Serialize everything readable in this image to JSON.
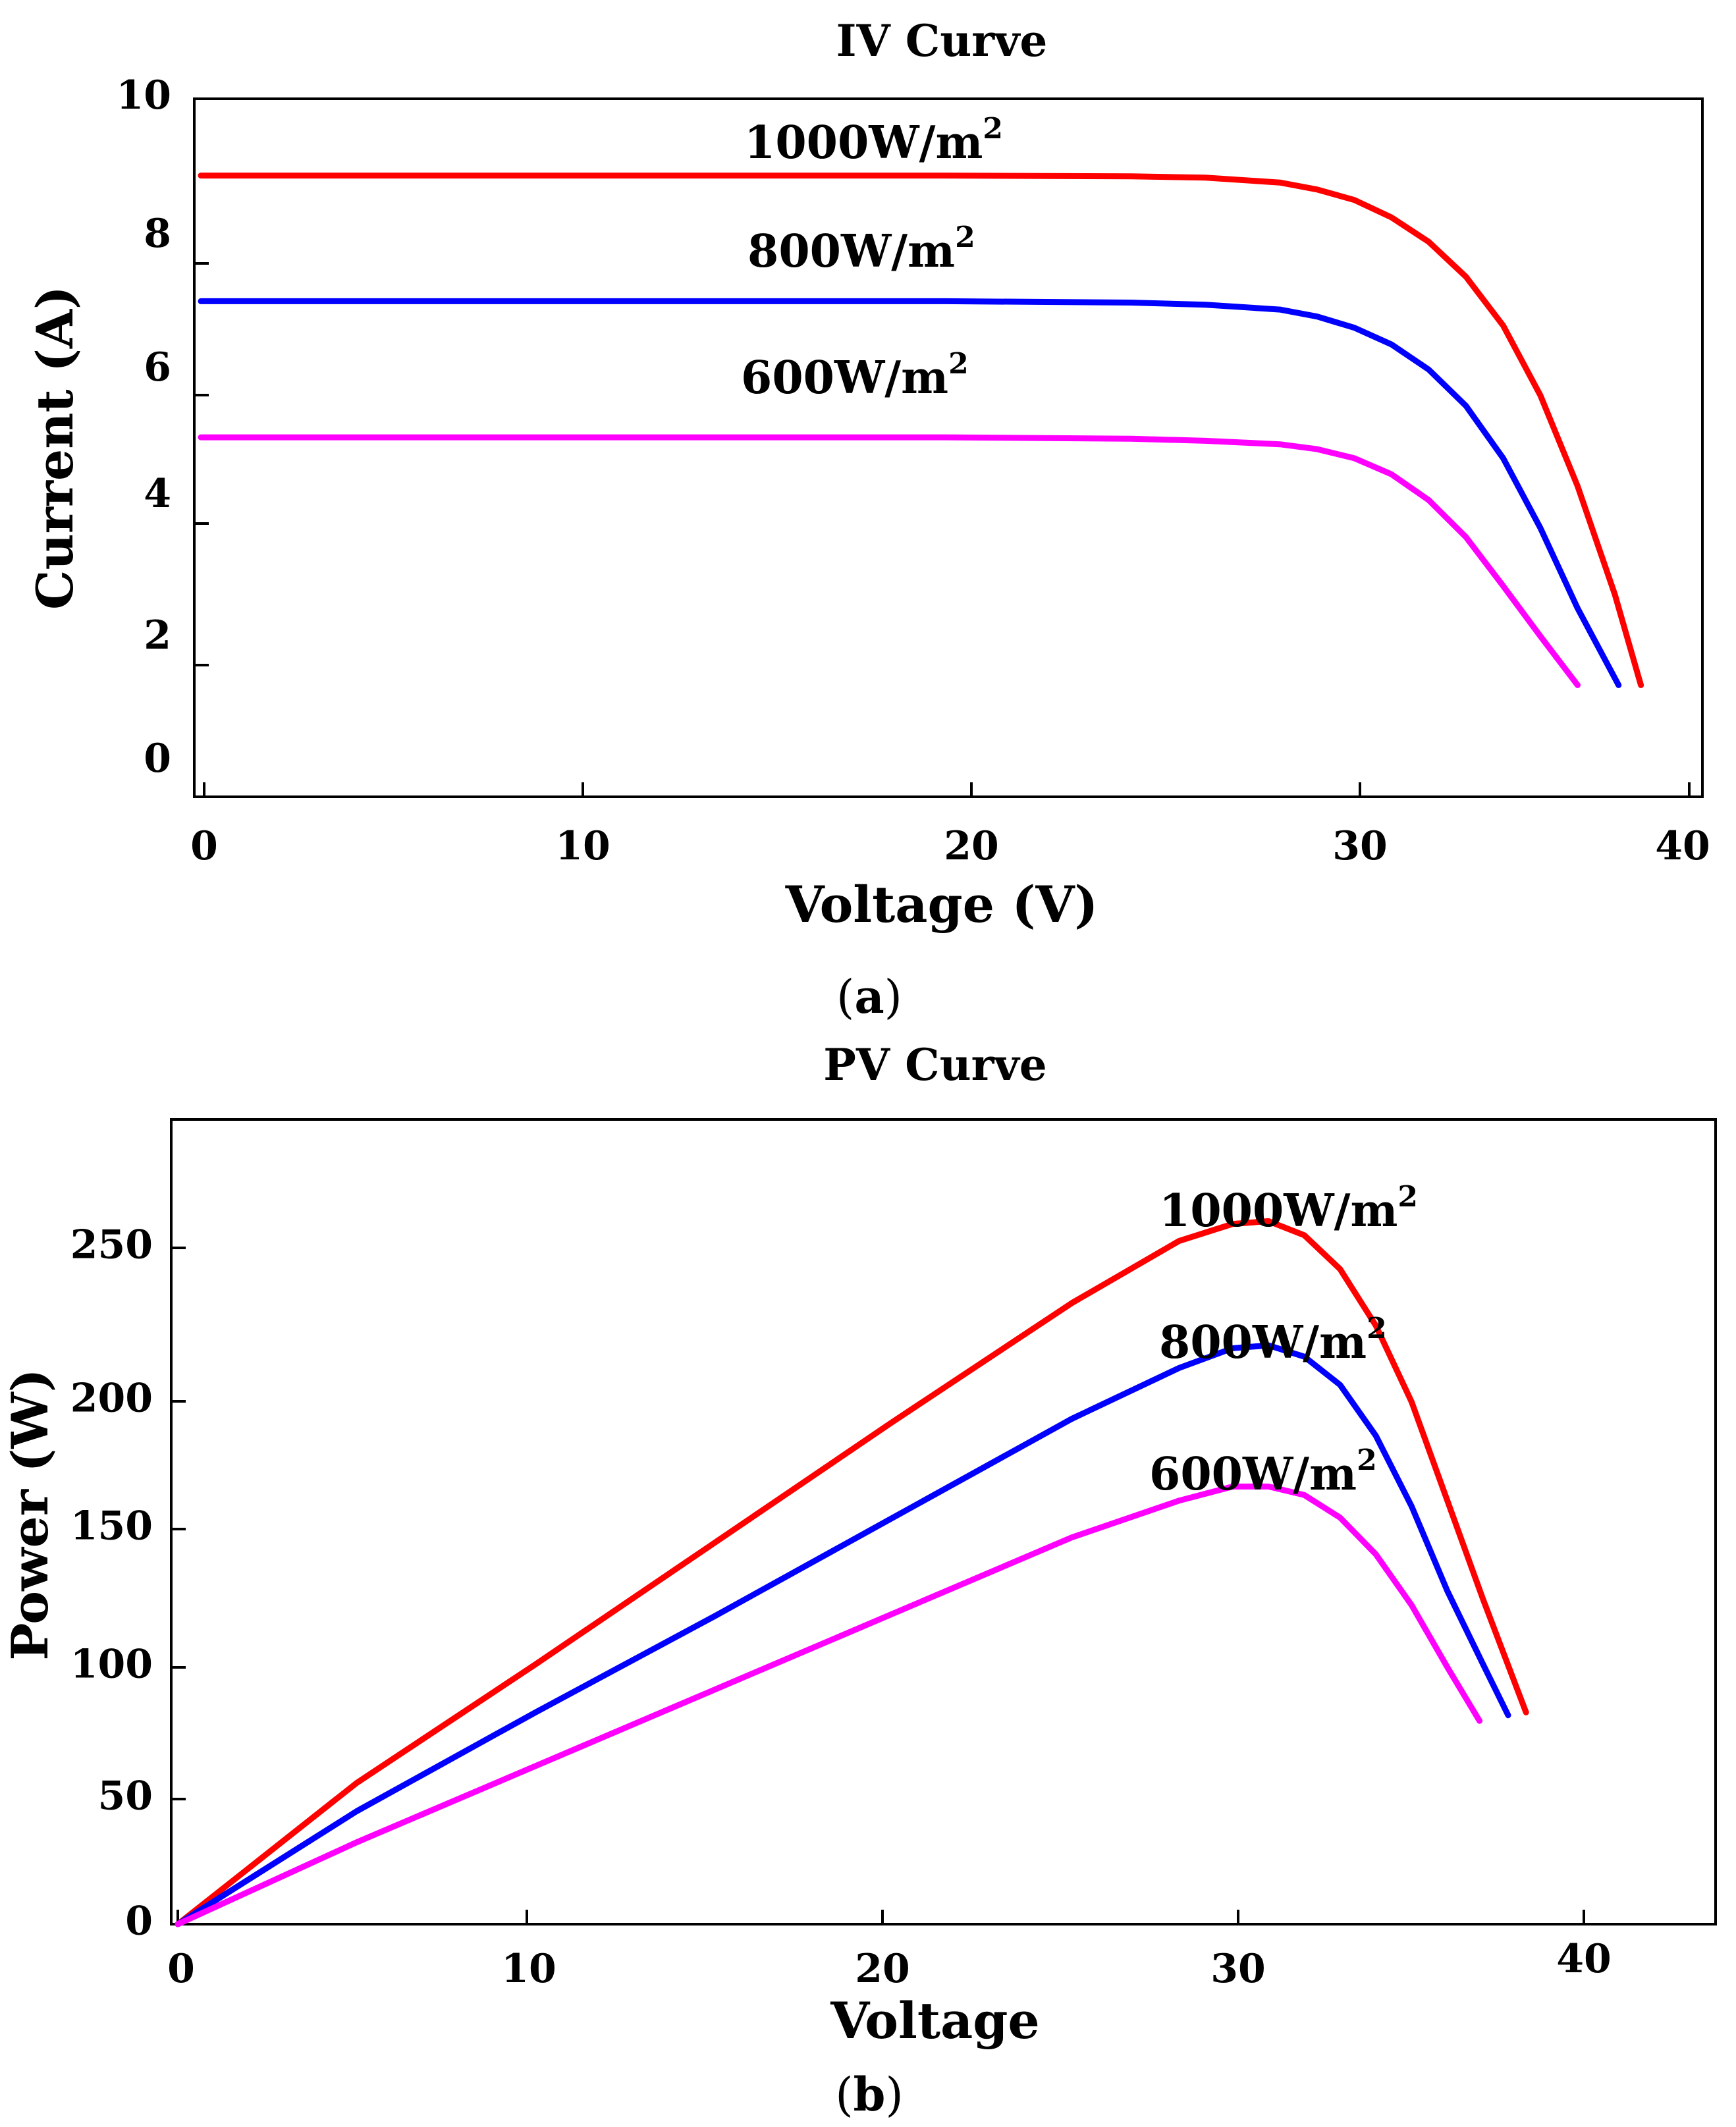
{
  "chart_data": [
    {
      "type": "line",
      "caption_letter": "a",
      "title": "IV Curve",
      "xlabel": "Voltage (V)",
      "ylabel": "Current (A)",
      "xlim": [
        0,
        40
      ],
      "ylim": [
        0,
        10
      ],
      "xticks": [
        "0",
        "10",
        "20",
        "30",
        "40"
      ],
      "yticks": [
        "0",
        "2",
        "4",
        "6",
        "8",
        "10"
      ],
      "grid": false,
      "series": [
        {
          "label": "1000W/m",
          "label_sup": "2",
          "color": "#ff0000",
          "x": [
            0,
            5,
            10,
            15,
            20,
            25,
            27,
            29,
            30,
            31,
            32,
            33,
            34,
            35,
            36,
            37,
            38,
            38.7
          ],
          "y": [
            8.9,
            8.9,
            8.9,
            8.9,
            8.9,
            8.89,
            8.87,
            8.8,
            8.7,
            8.55,
            8.3,
            7.95,
            7.45,
            6.75,
            5.75,
            4.45,
            2.9,
            1.6
          ]
        },
        {
          "label": "800W/m",
          "label_sup": "2",
          "color": "#0000ff",
          "x": [
            0,
            5,
            10,
            15,
            20,
            25,
            27,
            29,
            30,
            31,
            32,
            33,
            34,
            35,
            36,
            37,
            38.1
          ],
          "y": [
            7.1,
            7.1,
            7.1,
            7.1,
            7.1,
            7.08,
            7.05,
            6.98,
            6.88,
            6.72,
            6.48,
            6.12,
            5.6,
            4.85,
            3.85,
            2.7,
            1.6
          ]
        },
        {
          "label": "600W/m",
          "label_sup": "2",
          "color": "#ff00ff",
          "x": [
            0,
            5,
            10,
            15,
            20,
            25,
            27,
            29,
            30,
            31,
            32,
            33,
            34,
            35,
            36,
            37
          ],
          "y": [
            5.15,
            5.15,
            5.15,
            5.15,
            5.15,
            5.13,
            5.1,
            5.05,
            4.98,
            4.85,
            4.62,
            4.25,
            3.72,
            3.02,
            2.3,
            1.6
          ]
        }
      ]
    },
    {
      "type": "line",
      "caption_letter": "b",
      "title": "PV Curve",
      "xlabel": "Voltage",
      "ylabel": "Power (W)",
      "xlim": [
        0,
        43
      ],
      "ylim": [
        0,
        285
      ],
      "xticks": [
        "0",
        "10",
        "20",
        "30",
        "40"
      ],
      "yticks": [
        "0",
        "50",
        "100",
        "150",
        "200",
        "250"
      ],
      "grid": false,
      "series": [
        {
          "label": "1000W/m",
          "label_sup": "2",
          "color": "#ff0000",
          "x": [
            0,
            5,
            10,
            15,
            20,
            25,
            28,
            29.5,
            30.5,
            31.5,
            32.5,
            33.5,
            34.5,
            35.5,
            36.5,
            37.7
          ],
          "y": [
            0,
            50,
            92,
            135,
            178,
            220,
            242,
            248,
            249,
            244,
            232,
            212,
            185,
            150,
            115,
            75
          ]
        },
        {
          "label": "800W/m",
          "label_sup": "2",
          "color": "#0000ff",
          "x": [
            0,
            5,
            10,
            15,
            20,
            25,
            28,
            29.5,
            30.5,
            31.5,
            32.5,
            33.5,
            34.5,
            35.5,
            36.5,
            37.2
          ],
          "y": [
            0,
            40,
            75,
            109,
            144,
            179,
            197,
            204,
            205,
            201,
            191,
            173,
            148,
            118,
            92,
            74
          ]
        },
        {
          "label": "600W/m",
          "label_sup": "2",
          "color": "#ff00ff",
          "x": [
            0,
            5,
            10,
            15,
            20,
            25,
            28,
            29.5,
            30.5,
            31.5,
            32.5,
            33.5,
            34.5,
            35.5,
            36.4
          ],
          "y": [
            0,
            29,
            56,
            83,
            110,
            137,
            150,
            155,
            155,
            152,
            144,
            131,
            113,
            91,
            72
          ]
        }
      ]
    }
  ]
}
